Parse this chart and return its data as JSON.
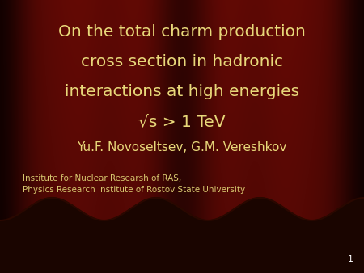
{
  "title_line1": "On the total charm production",
  "title_line2": "cross section in hadronic",
  "title_line3": "interactions at high energies",
  "title_line4": "√s > 1 TeV",
  "author": "Yu.F. Novoseltsev, G.M. Vereshkov",
  "institute_line1": "Institute for Nuclear Researsh of RAS,",
  "institute_line2": "Physics Research Institute of Rostov State University",
  "slide_number": "1",
  "title_color": "#E8D87A",
  "author_color": "#E8D87A",
  "institute_color": "#D8C870",
  "slide_number_color": "#FFFFFF",
  "bg_very_dark": "#1A0500",
  "bg_dark": "#3A0800",
  "bg_mid": "#8B1500",
  "bg_light": "#C41800",
  "title_fontsize": 14.5,
  "author_fontsize": 11,
  "institute_fontsize": 7.5
}
